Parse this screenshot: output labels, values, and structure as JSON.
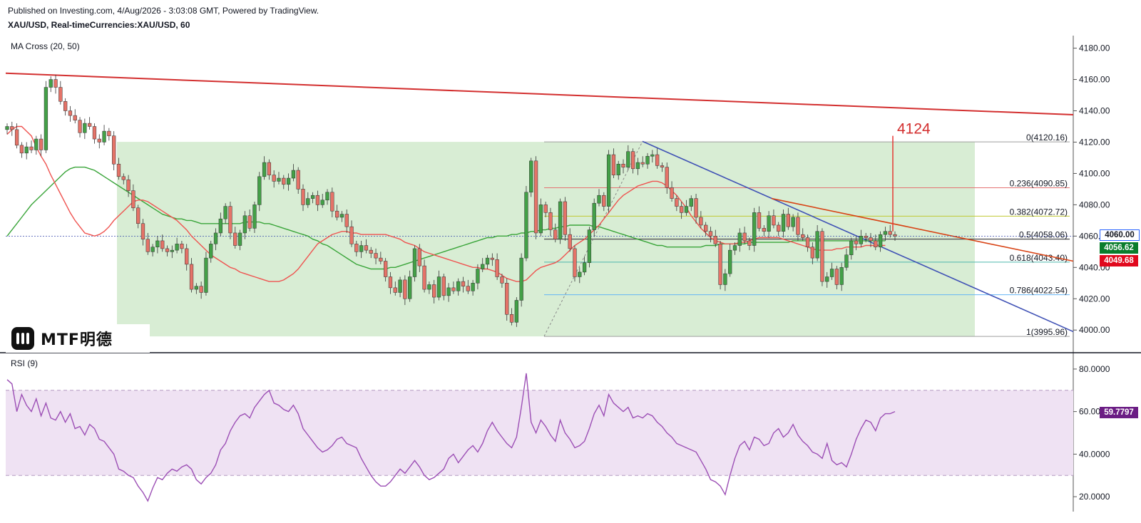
{
  "header": {
    "published": "Published on Investing.com, 4/Aug/2026 - 3:03:08 GMT, Powered by TradingView.",
    "symbol": "XAU/USD, Real-timeCurrencies:XAU/USD, 60"
  },
  "indicators": {
    "ma_label": "MA Cross (20, 50)",
    "rsi_label": "RSI (9)"
  },
  "logo": {
    "text": "MTF明德"
  },
  "price_tags": {
    "current": {
      "text": "4060.00",
      "color": "#ffffff",
      "text_color": "#131722",
      "border": "#2962ff"
    },
    "ma_green": {
      "text": "4056.62",
      "color": "#0a7d2c"
    },
    "ma_red": {
      "text": "4049.68",
      "color": "#e1081d"
    },
    "rsi": {
      "text": "59.7797",
      "color": "#6b1d84"
    }
  },
  "target_label": "4124",
  "chart_data": [
    {
      "type": "candlestick",
      "title": "",
      "y_axis": {
        "ylim": [
          3986,
          4188
        ],
        "ticks": [
          4000,
          4020,
          4040,
          4060,
          4080,
          4100,
          4120,
          4140,
          4160,
          4180
        ],
        "tick_labels": [
          "4000.00",
          "4020.00",
          "4040.00",
          "4060.00",
          "4080.00",
          "4100.00",
          "4120.00",
          "4140.00",
          "4160.00",
          "4180.00"
        ]
      },
      "close": [
        4130,
        4128,
        4118,
        4113,
        4117,
        4115,
        4122,
        4115,
        4155,
        4160,
        4155,
        4146,
        4140,
        4137,
        4134,
        4126,
        4132,
        4130,
        4122,
        4120,
        4127,
        4124,
        4106,
        4098,
        4096,
        4089,
        4078,
        4068,
        4058,
        4050,
        4053,
        4057,
        4052,
        4050,
        4051,
        4055,
        4052,
        4042,
        4026,
        4028,
        4024,
        4046,
        4055,
        4062,
        4071,
        4079,
        4062,
        4054,
        4062,
        4073,
        4065,
        4080,
        4098,
        4107,
        4099,
        4095,
        4097,
        4093,
        4097,
        4102,
        4090,
        4080,
        4084,
        4086,
        4080,
        4083,
        4088,
        4076,
        4072,
        4074,
        4066,
        4055,
        4050,
        4054,
        4051,
        4049,
        4046,
        4044,
        4034,
        4027,
        4024,
        4032,
        4020,
        4034,
        4052,
        4041,
        4026,
        4029,
        4021,
        4034,
        4022,
        4027,
        4025,
        4031,
        4028,
        4025,
        4030,
        4039,
        4042,
        4046,
        4045,
        4034,
        4030,
        4010,
        4005,
        4019,
        4046,
        4088,
        4108,
        4062,
        4080,
        4075,
        4064,
        4058,
        4082,
        4061,
        4052,
        4034,
        4037,
        4043,
        4064,
        4081,
        4086,
        4079,
        4112,
        4099,
        4106,
        4104,
        4114,
        4103,
        4107,
        4106,
        4111,
        4112,
        4105,
        4104,
        4091,
        4084,
        4079,
        4075,
        4079,
        4084,
        4072,
        4067,
        4063,
        4060,
        4055,
        4029,
        4036,
        4051,
        4054,
        4062,
        4057,
        4054,
        4075,
        4065,
        4063,
        4073,
        4067,
        4063,
        4074,
        4066,
        4072,
        4061,
        4059,
        4053,
        4046,
        4063,
        4031,
        4034,
        4039,
        4029,
        4040,
        4048,
        4057,
        4055,
        4060,
        4059,
        4057,
        4053,
        4061,
        4063,
        4061,
        4060
      ],
      "ma20": [
        4125,
        4128,
        4130,
        4130,
        4127,
        4124,
        4117,
        4111,
        4106,
        4099,
        4093,
        4087,
        4081,
        4075,
        4070,
        4066,
        4062,
        4061,
        4060,
        4061,
        4063,
        4066,
        4070,
        4073,
        4076,
        4079,
        4082,
        4083,
        4083,
        4082,
        4080,
        4078,
        4076,
        4074,
        4072,
        4070,
        4067,
        4064,
        4060,
        4057,
        4054,
        4051,
        4048,
        4046,
        4044,
        4042,
        4040,
        4039,
        4037,
        4036,
        4035,
        4034,
        4033,
        4032,
        4031,
        4031,
        4031,
        4032,
        4034,
        4036,
        4039,
        4043,
        4047,
        4051,
        4055,
        4057,
        4059,
        4061,
        4062,
        4063,
        4063,
        4062,
        4062,
        4061,
        4061,
        4061,
        4061,
        4061,
        4061,
        4060,
        4059,
        4058,
        4056,
        4055,
        4054,
        4052,
        4050,
        4049,
        4048,
        4047,
        4046,
        4045,
        4044,
        4043,
        4042,
        4041,
        4040,
        4040,
        4039,
        4039,
        4038,
        4037,
        4035,
        4033,
        4032,
        4031,
        4031,
        4032,
        4035,
        4038,
        4040,
        4041,
        4042,
        4043,
        4045,
        4048,
        4051,
        4054,
        4056,
        4058,
        4061,
        4064,
        4067,
        4071,
        4075,
        4079,
        4083,
        4086,
        4088,
        4090,
        4092,
        4093,
        4094,
        4095,
        4095,
        4094,
        4092,
        4089,
        4086,
        4082,
        4078,
        4073,
        4069,
        4065,
        4062,
        4059,
        4057,
        4056,
        4055,
        4055,
        4055,
        4056,
        4056,
        4057,
        4058,
        4059,
        4059,
        4059,
        4059,
        4059,
        4058,
        4057,
        4056,
        4055,
        4054,
        4053,
        4052,
        4051,
        4051,
        4051,
        4051,
        4052,
        4052,
        4053,
        4053,
        4053,
        4053,
        4054,
        4054,
        4054,
        4054,
        4054
      ],
      "ma50": [
        4060,
        4064,
        4068,
        4072,
        4076,
        4080,
        4083,
        4086,
        4089,
        4092,
        4095,
        4098,
        4101,
        4103,
        4104,
        4104,
        4104,
        4103,
        4102,
        4100,
        4098,
        4096,
        4094,
        4092,
        4090,
        4088,
        4086,
        4084,
        4082,
        4080,
        4078,
        4076,
        4074,
        4073,
        4072,
        4071,
        4071,
        4070,
        4070,
        4069,
        4068,
        4068,
        4068,
        4068,
        4068,
        4068,
        4068,
        4068,
        4068,
        4069,
        4069,
        4069,
        4069,
        4068,
        4068,
        4067,
        4066,
        4065,
        4064,
        4063,
        4062,
        4061,
        4060,
        4058,
        4057,
        4055,
        4054,
        4052,
        4050,
        4048,
        4046,
        4044,
        4042,
        4041,
        4040,
        4039,
        4039,
        4039,
        4039,
        4040,
        4040,
        4041,
        4042,
        4043,
        4044,
        4045,
        4046,
        4047,
        4048,
        4049,
        4050,
        4051,
        4052,
        4053,
        4054,
        4055,
        4056,
        4057,
        4058,
        4059,
        4059,
        4060,
        4060,
        4060,
        4061,
        4061,
        4062,
        4062,
        4063,
        4063,
        4064,
        4064,
        4065,
        4065,
        4066,
        4066,
        4067,
        4067,
        4067,
        4067,
        4067,
        4066,
        4066,
        4065,
        4064,
        4063,
        4062,
        4061,
        4060,
        4059,
        4058,
        4057,
        4056,
        4055,
        4054,
        4054,
        4053,
        4053,
        4053,
        4053,
        4053,
        4053,
        4053,
        4053,
        4054,
        4054,
        4054,
        4055,
        4055,
        4055,
        4055,
        4055,
        4055,
        4056,
        4056,
        4056,
        4056,
        4056,
        4056,
        4056,
        4056,
        4056,
        4057,
        4057,
        4057,
        4057,
        4057,
        4057,
        4057,
        4057,
        4057,
        4057,
        4057,
        4057,
        4057,
        4057,
        4057,
        4057,
        4057,
        4057,
        4057,
        4057
      ],
      "fibonacci": [
        {
          "ratio": "0",
          "value": 4120.16,
          "label": "0(4120.16)"
        },
        {
          "ratio": "0.236",
          "value": 4090.85,
          "label": "0.236(4090.85)"
        },
        {
          "ratio": "0.382",
          "value": 4072.72,
          "label": "0.382(4072.72)"
        },
        {
          "ratio": "0.5",
          "value": 4058.06,
          "label": "0.5(4058.06)"
        },
        {
          "ratio": "0.618",
          "value": 4043.4,
          "label": "0.618(4043.40)"
        },
        {
          "ratio": "0.786",
          "value": 4022.54,
          "label": "0.786(4022.54)"
        },
        {
          "ratio": "1",
          "value": 3995.96,
          "label": "1(3995.96)"
        }
      ],
      "target": 4124,
      "last_price": 4060.0
    },
    {
      "type": "line",
      "title": "",
      "y_axis": {
        "ylim": [
          13,
          87
        ],
        "ticks": [
          20,
          40,
          60,
          80
        ],
        "tick_labels": [
          "20.0000",
          "40.0000",
          "60.0000",
          "80.0000"
        ]
      },
      "bands": [
        30,
        70
      ],
      "rsi": [
        75,
        73,
        60,
        68,
        63,
        60,
        66,
        58,
        64,
        57,
        56,
        60,
        55,
        59,
        52,
        53,
        49,
        54,
        52,
        47,
        46,
        43,
        40,
        33,
        32,
        30,
        29,
        25,
        22,
        18,
        24,
        29,
        28,
        31,
        33,
        32,
        34,
        35,
        33,
        28,
        26,
        29,
        31,
        35,
        42,
        45,
        51,
        55,
        58,
        59,
        57,
        62,
        65,
        68,
        70,
        64,
        63,
        61,
        60,
        63,
        59,
        52,
        49,
        46,
        43,
        41,
        42,
        44,
        47,
        48,
        45,
        44,
        43,
        38,
        34,
        30,
        27,
        25,
        25,
        27,
        30,
        33,
        31,
        34,
        37,
        34,
        30,
        28,
        29,
        31,
        33,
        38,
        40,
        36,
        39,
        42,
        44,
        41,
        45,
        51,
        55,
        51,
        48,
        45,
        43,
        48,
        62,
        78,
        55,
        50,
        56,
        53,
        49,
        46,
        56,
        50,
        47,
        43,
        44,
        46,
        52,
        59,
        63,
        58,
        68,
        64,
        62,
        60,
        62,
        57,
        58,
        57,
        59,
        58,
        55,
        53,
        50,
        48,
        45,
        44,
        43,
        42,
        41,
        37,
        33,
        28,
        27,
        25,
        21,
        30,
        38,
        44,
        46,
        42,
        48,
        47,
        44,
        45,
        50,
        52,
        48,
        50,
        54,
        49,
        46,
        44,
        41,
        40,
        38,
        45,
        37,
        35,
        36,
        34,
        40,
        47,
        52,
        56,
        55,
        51,
        57,
        59,
        59,
        60
      ]
    }
  ]
}
